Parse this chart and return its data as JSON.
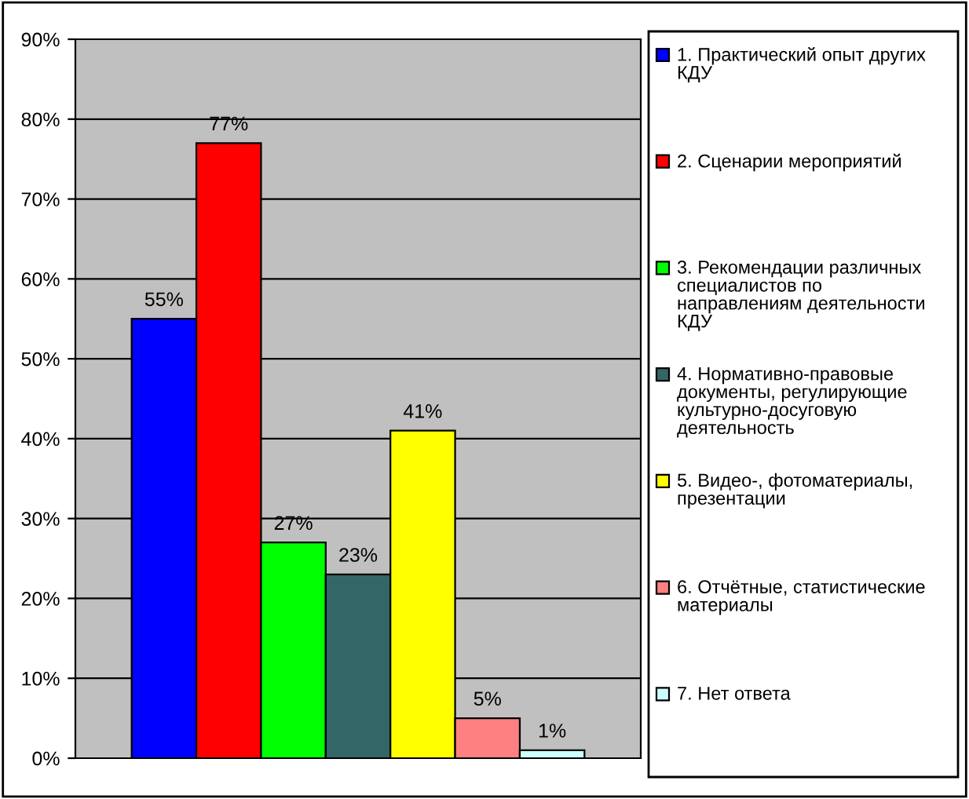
{
  "chart_data": {
    "type": "bar",
    "categories": [
      null
    ],
    "series": [
      {
        "name": "1. Практический опыт других\nКДУ",
        "color": "#0000ff",
        "values": [
          55
        ],
        "value_labels": [
          "55%"
        ]
      },
      {
        "name": "2. Сценарии мероприятий",
        "color": "#ff0000",
        "values": [
          77
        ],
        "value_labels": [
          "77%"
        ]
      },
      {
        "name": "3. Рекомендации различных\nспециалистов по\nнаправлениям деятельности\nКДУ",
        "color": "#00ff00",
        "values": [
          27
        ],
        "value_labels": [
          "27%"
        ]
      },
      {
        "name": "4. Нормативно-правовые\nдокументы, регулирующие\nкультурно-досуговую\nдеятельность",
        "color": "#336666",
        "values": [
          23
        ],
        "value_labels": [
          "23%"
        ]
      },
      {
        "name": "5. Видео-, фотоматериалы,\nпрезентации",
        "color": "#ffff00",
        "values": [
          41
        ],
        "value_labels": [
          "41%"
        ]
      },
      {
        "name": "6. Отчётные, статистические\nматериалы",
        "color": "#ff8080",
        "values": [
          5
        ],
        "value_labels": [
          "5%"
        ]
      },
      {
        "name": "7. Нет ответа",
        "color": "#ccffff",
        "values": [
          1
        ],
        "value_labels": [
          "1%"
        ]
      }
    ],
    "ylim": [
      0,
      90
    ],
    "yticks": [
      {
        "value": 0,
        "label": "0%"
      },
      {
        "value": 10,
        "label": "10%"
      },
      {
        "value": 20,
        "label": "20%"
      },
      {
        "value": 30,
        "label": "30%"
      },
      {
        "value": 40,
        "label": "40%"
      },
      {
        "value": 50,
        "label": "50%"
      },
      {
        "value": 60,
        "label": "60%"
      },
      {
        "value": 70,
        "label": "70%"
      },
      {
        "value": 80,
        "label": "80%"
      },
      {
        "value": 90,
        "label": "90%"
      }
    ],
    "grid": "y",
    "legend": "right"
  }
}
